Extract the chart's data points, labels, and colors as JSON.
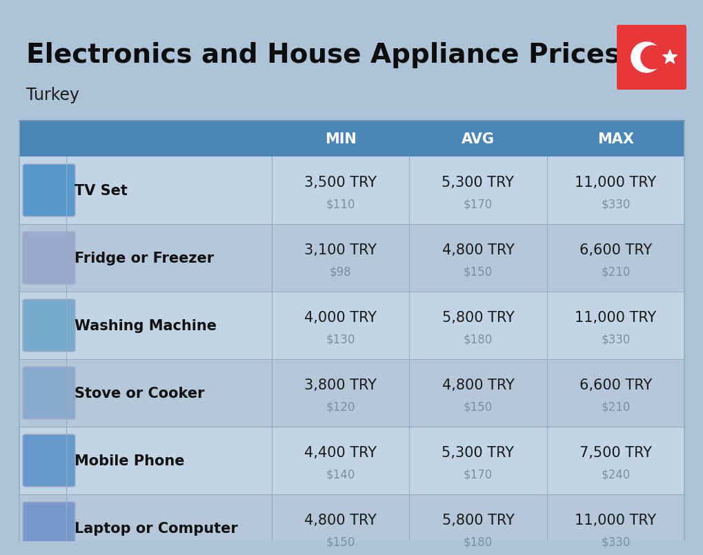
{
  "title": "Electronics and House Appliance Prices",
  "subtitle": "Turkey",
  "bg_color": "#adc4d8",
  "header_bg": "#4a86b8",
  "header_text": "#ffffff",
  "row_bg_even": "#c2d5e5",
  "row_bg_odd": "#b5c8d9",
  "cell_divider": "#92aec0",
  "name_color": "#111111",
  "try_color": "#1a1a1a",
  "usd_color": "#7a8fa0",
  "flag_red": "#e8373a",
  "columns": [
    "MIN",
    "AVG",
    "MAX"
  ],
  "rows": [
    {
      "name": "TV Set",
      "min_try": "3,500 TRY",
      "min_usd": "$110",
      "avg_try": "5,300 TRY",
      "avg_usd": "$170",
      "max_try": "11,000 TRY",
      "max_usd": "$330"
    },
    {
      "name": "Fridge or Freezer",
      "min_try": "3,100 TRY",
      "min_usd": "$98",
      "avg_try": "4,800 TRY",
      "avg_usd": "$150",
      "max_try": "6,600 TRY",
      "max_usd": "$210"
    },
    {
      "name": "Washing Machine",
      "min_try": "4,000 TRY",
      "min_usd": "$130",
      "avg_try": "5,800 TRY",
      "avg_usd": "$180",
      "max_try": "11,000 TRY",
      "max_usd": "$330"
    },
    {
      "name": "Stove or Cooker",
      "min_try": "3,800 TRY",
      "min_usd": "$120",
      "avg_try": "4,800 TRY",
      "avg_usd": "$150",
      "max_try": "6,600 TRY",
      "max_usd": "$210"
    },
    {
      "name": "Mobile Phone",
      "min_try": "4,400 TRY",
      "min_usd": "$140",
      "avg_try": "5,300 TRY",
      "avg_usd": "$170",
      "max_try": "7,500 TRY",
      "max_usd": "$240"
    },
    {
      "name": "Laptop or Computer",
      "min_try": "4,800 TRY",
      "min_usd": "$150",
      "avg_try": "5,800 TRY",
      "avg_usd": "$180",
      "max_try": "11,000 TRY",
      "max_usd": "$330"
    }
  ],
  "title_fontsize": 28,
  "subtitle_fontsize": 17,
  "header_fontsize": 15,
  "name_fontsize": 15,
  "try_fontsize": 15,
  "usd_fontsize": 12
}
